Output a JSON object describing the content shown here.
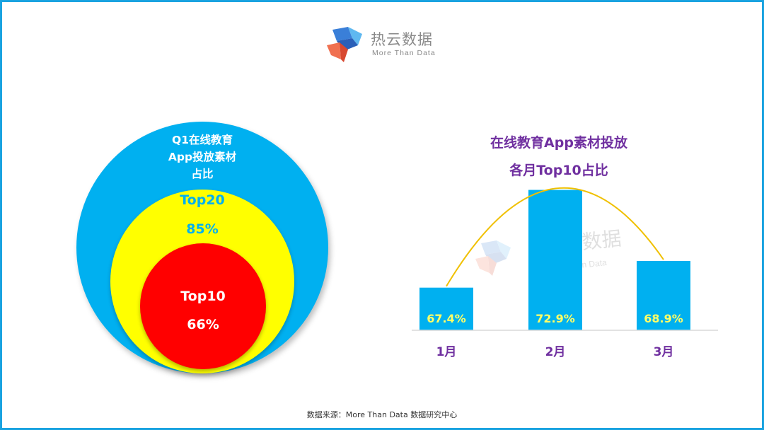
{
  "brand": {
    "name": "热云数据",
    "tagline": "More Than Data"
  },
  "colors": {
    "frame": "#1aa3e0",
    "outer_circle": "#00b0f0",
    "middle_circle": "#ffff00",
    "inner_circle": "#ff0000",
    "bar": "#00b0f0",
    "bar_label": "#ffff66",
    "trend_curve": "#f0c000",
    "right_title": "#7030a0",
    "middle_text": "#00b0f0",
    "inner_text": "#ffffff"
  },
  "left_chart": {
    "title": "Q1在线教育\nApp投放素材\n占比",
    "top20": {
      "label": "Top20",
      "value": "85%"
    },
    "top10": {
      "label": "Top10",
      "value": "66%"
    }
  },
  "chart_data": [
    {
      "type": "nested-circles",
      "title": "Q1在线教育App投放素材占比",
      "series": [
        {
          "name": "Top20",
          "value": 85,
          "unit": "%"
        },
        {
          "name": "Top10",
          "value": 66,
          "unit": "%"
        }
      ]
    },
    {
      "type": "bar",
      "title": "在线教育App素材投放\n各月Top10占比",
      "categories": [
        "1月",
        "2月",
        "3月"
      ],
      "values": [
        67.4,
        72.9,
        68.9
      ],
      "value_labels": [
        "67.4%",
        "72.9%",
        "68.9%"
      ],
      "ylim": [
        65,
        73
      ],
      "trend_curve": true,
      "grid": false
    }
  ],
  "source": "数据来源：More Than Data 数据研究中心"
}
